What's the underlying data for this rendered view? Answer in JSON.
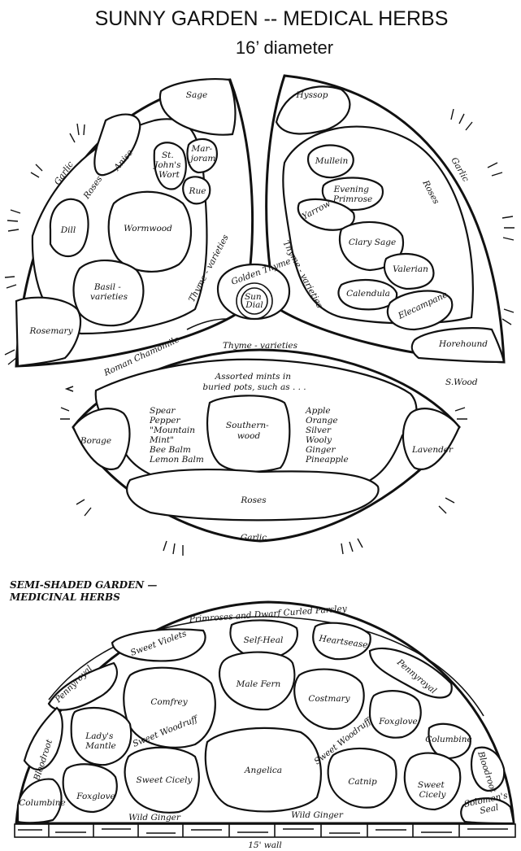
{
  "colors": {
    "ink": "#111111",
    "paper": "#ffffff"
  },
  "sunny": {
    "title": "SUNNY GARDEN -- MEDICAL HERBS",
    "subtitle": "16’ diameter",
    "signature": "S.Wood",
    "left_bed": {
      "sage": "Sage",
      "garlic": "Garlic",
      "roses": "Roses",
      "anise": "Anise",
      "st_johns_wort": [
        "St.",
        "John's",
        "Wort"
      ],
      "marjoram": [
        "Mar-",
        "joram"
      ],
      "rue": "Rue",
      "dill": "Dill",
      "wormwood": "Wormwood",
      "basil": [
        "Basil -",
        "varieties"
      ],
      "rosemary": "Rosemary",
      "thyme_varieties": "Thyme - varieties"
    },
    "right_bed": {
      "hyssop": "Hyssop",
      "garlic": "Garlic",
      "roses": "Roses",
      "mullein": "Mullein",
      "evening_primrose": [
        "Evening",
        "Primrose"
      ],
      "yarrow": "Yarrow",
      "clary_sage": "Clary Sage",
      "valerian": "Valerian",
      "calendula": "Calendula",
      "elecampane": "Elecampane",
      "horehound": "Horehound",
      "thyme_varieties": "Thyme - varieties"
    },
    "center": {
      "golden_thyme": "Golden Thyme",
      "sun_dial": [
        "Sun",
        "Dial"
      ],
      "roman_chamomile": "Roman Chamomile"
    },
    "bottom_bed": {
      "thyme_varieties": "Thyme - varieties",
      "mints_note": [
        "Assorted mints in",
        "buried pots, such as . . ."
      ],
      "mints_left": [
        "Spear",
        "Pepper",
        "\"Mountain",
        "Mint\"",
        "Bee Balm",
        "Lemon Balm"
      ],
      "southernwood": [
        "Southern-",
        "wood"
      ],
      "mints_right": [
        "Apple",
        "Orange",
        "Silver",
        "Wooly",
        "Ginger",
        "Pineapple"
      ],
      "borage": "Borage",
      "lavender": "Lavender",
      "roses": "Roses",
      "garlic": "Garlic"
    }
  },
  "shaded": {
    "title": [
      "SEMI-SHADED GARDEN —",
      "MEDICINAL HERBS"
    ],
    "beds": {
      "primroses": "Primroses and Dwarf Curled Parsley",
      "self_heal": "Self-Heal",
      "heartsease": "Heartsease",
      "sweet_violets": "Sweet Violets",
      "pennyroyal_right": "Pennyroyal",
      "male_fern": "Male Fern",
      "comfrey": "Comfrey",
      "costmary": "Costmary",
      "pennyroyal_left": "Pennyroyal",
      "foxglove_right": "Foxglove",
      "sweet_woodruff_left": "Sweet Woodruff",
      "sweet_woodruff_right": "Sweet Woodruff",
      "columbine_right": "Columbine",
      "ladys_mantle": [
        "Lady's",
        "Mantle"
      ],
      "bloodroot_left": "Bloodroot",
      "bloodroot_right": "Bloodroot",
      "angelica": "Angelica",
      "catnip": "Catnip",
      "sweet_cicely_left": "Sweet Cicely",
      "sweet_cicely_right": [
        "Sweet",
        "Cicely"
      ],
      "foxglove_left": "Foxglove",
      "columbine_left": "Columbine",
      "solomons_seal": [
        "Solomon's",
        "Seal"
      ],
      "wild_ginger_left": "Wild Ginger",
      "wild_ginger_right": "Wild Ginger"
    },
    "wall_label": "15' wall"
  }
}
